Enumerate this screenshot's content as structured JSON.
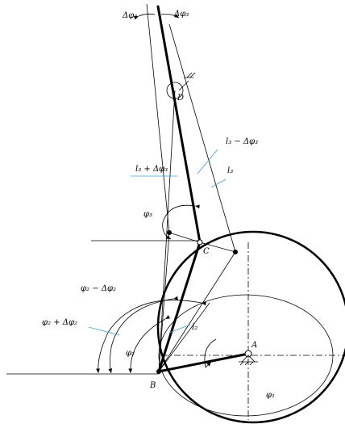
{
  "labels": [
    "Δφ₃",
    "Δφ₃",
    "D",
    "l₃ − Δφ₃",
    "l₃ + Δφ₃",
    "l₃",
    "φ₃",
    "C",
    "φ₂ − Δφ₂",
    "φ₂ + Δφ₂",
    "l₂",
    "φ₂",
    "A",
    "B",
    "φ₁"
  ]
}
